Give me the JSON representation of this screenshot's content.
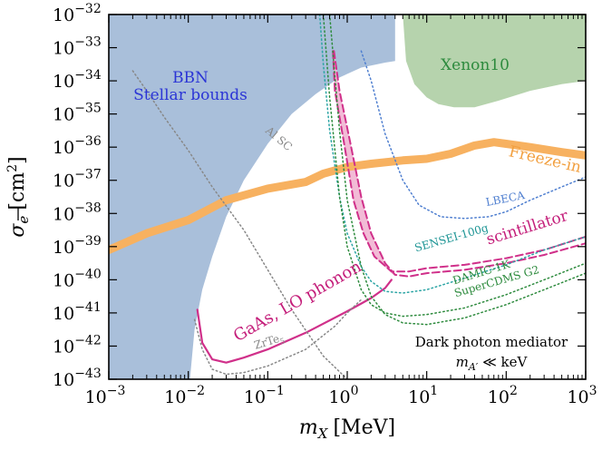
{
  "chart_data": {
    "type": "line",
    "xlabel_var": "m",
    "xlabel_sub": "X",
    "xlabel_unit": "[MeV]",
    "ylabel_var": "σ",
    "ylabel_sub": "e",
    "ylabel_unit_l": "[cm",
    "ylabel_unit_sup": "2",
    "ylabel_unit_r": "]",
    "x_scale": "log",
    "y_scale": "log",
    "xlim": [
      0.001,
      1000
    ],
    "ylim": [
      1e-43,
      1e-32
    ],
    "grid": false,
    "x_ticks": [
      {
        "value": 0.001,
        "base": "10",
        "exp": "−3"
      },
      {
        "value": 0.01,
        "base": "10",
        "exp": "−2"
      },
      {
        "value": 0.1,
        "base": "10",
        "exp": "−1"
      },
      {
        "value": 1,
        "base": "10",
        "exp": "0"
      },
      {
        "value": 10,
        "base": "10",
        "exp": "1"
      },
      {
        "value": 100,
        "base": "10",
        "exp": "2"
      },
      {
        "value": 1000,
        "base": "10",
        "exp": "3"
      }
    ],
    "y_ticks": [
      {
        "value": 1e-32,
        "base": "10",
        "exp": "−32"
      },
      {
        "value": 1e-33,
        "base": "10",
        "exp": "−33"
      },
      {
        "value": 1e-34,
        "base": "10",
        "exp": "−34"
      },
      {
        "value": 1e-35,
        "base": "10",
        "exp": "−35"
      },
      {
        "value": 1e-36,
        "base": "10",
        "exp": "−36"
      },
      {
        "value": 1e-37,
        "base": "10",
        "exp": "−37"
      },
      {
        "value": 1e-38,
        "base": "10",
        "exp": "−38"
      },
      {
        "value": 1e-39,
        "base": "10",
        "exp": "−39"
      },
      {
        "value": 1e-40,
        "base": "10",
        "exp": "−40"
      },
      {
        "value": 1e-41,
        "base": "10",
        "exp": "−41"
      },
      {
        "value": 1e-42,
        "base": "10",
        "exp": "−42"
      },
      {
        "value": 1e-43,
        "base": "10",
        "exp": "−43"
      }
    ],
    "regions": [
      {
        "name": "BBN Stellar bounds",
        "color": "#a9bfda",
        "x": [
          0.001,
          0.0105,
          0.012,
          0.015,
          0.02,
          0.03,
          0.05,
          0.1,
          0.2,
          0.4,
          0.8,
          1.5,
          3,
          4,
          4,
          0.001
        ],
        "y": [
          -43,
          -43,
          -41.5,
          -40.3,
          -39.3,
          -38.1,
          -37.0,
          -35.9,
          -35.0,
          -34.4,
          -33.9,
          -33.6,
          -33.45,
          -33.4,
          -32,
          -32
        ]
      },
      {
        "name": "Xenon10",
        "color": "#b6d3ad",
        "x": [
          5,
          5.5,
          7,
          10,
          14,
          22,
          40,
          80,
          200,
          500,
          1000,
          1000,
          5
        ],
        "y": [
          -32,
          -33.4,
          -34.1,
          -34.5,
          -34.7,
          -34.8,
          -34.8,
          -34.6,
          -34.3,
          -34.1,
          -34.0,
          -32,
          -32
        ]
      },
      {
        "name": "scintillator",
        "color": "#f2bbd6",
        "x": [
          0.68,
          0.8,
          1.1,
          1.5,
          2,
          3,
          4,
          3.6,
          2.2,
          1.6,
          1.2,
          0.9,
          0.7,
          0.66
        ],
        "y": [
          -33.1,
          -34.3,
          -35.9,
          -37.5,
          -38.6,
          -39.5,
          -39.9,
          -39.8,
          -39.3,
          -38.6,
          -37.6,
          -35.8,
          -34.3,
          -33.1
        ]
      }
    ],
    "series": [
      {
        "name": "Freeze-in",
        "color": "#f7b160",
        "width": 9,
        "dash": "",
        "x": [
          0.001,
          0.003,
          0.01,
          0.03,
          0.1,
          0.3,
          0.5,
          1,
          2,
          5,
          10,
          20,
          40,
          70,
          100,
          200,
          500,
          1000
        ],
        "y": [
          -39.1,
          -38.6,
          -38.2,
          -37.6,
          -37.25,
          -37.05,
          -36.8,
          -36.6,
          -36.5,
          -36.4,
          -36.35,
          -36.2,
          -35.95,
          -35.85,
          -35.9,
          -36.0,
          -36.15,
          -36.25
        ]
      },
      {
        "name": "GaAs, LO phonon",
        "color": "#d0308a",
        "width": 2.2,
        "dash": "",
        "x": [
          0.013,
          0.015,
          0.02,
          0.03,
          0.05,
          0.1,
          0.3,
          1,
          2,
          3,
          3.6
        ],
        "y": [
          -40.9,
          -41.9,
          -42.4,
          -42.5,
          -42.35,
          -42.1,
          -41.6,
          -40.95,
          -40.55,
          -40.25,
          -40.0
        ]
      },
      {
        "name": "scintillator",
        "color": "#d0308a",
        "width": 2,
        "dash": "8 4",
        "x": [
          0.68,
          0.8,
          1.1,
          1.5,
          2,
          3,
          4,
          6,
          10,
          30,
          100,
          300,
          1000
        ],
        "y": [
          -33.1,
          -34.3,
          -35.9,
          -37.5,
          -38.6,
          -39.5,
          -39.85,
          -39.9,
          -39.8,
          -39.7,
          -39.5,
          -39.25,
          -38.9
        ]
      },
      {
        "name": "scintillator",
        "color": "#d0308a",
        "width": 2,
        "dash": "8 4",
        "x": [
          0.66,
          0.7,
          0.9,
          1.2,
          1.6,
          2.2,
          3.6,
          6,
          10,
          30,
          100,
          300,
          1000
        ],
        "y": [
          -33.1,
          -34.3,
          -35.8,
          -37.6,
          -38.6,
          -39.3,
          -39.75,
          -39.75,
          -39.65,
          -39.55,
          -39.35,
          -39.1,
          -38.7
        ]
      },
      {
        "name": "Al SC",
        "color": "#888888",
        "width": 1.5,
        "dash": "1.5 3",
        "x": [
          0.002,
          0.003,
          0.005,
          0.01,
          0.02,
          0.05,
          0.1,
          0.2,
          0.5,
          1
        ],
        "y": [
          -33.7,
          -34.3,
          -35.1,
          -36.1,
          -37.2,
          -38.5,
          -39.7,
          -40.9,
          -42.3,
          -43.0
        ]
      },
      {
        "name": "ZrTe5",
        "color": "#888888",
        "width": 1.5,
        "dash": "1.5 3",
        "x": [
          0.012,
          0.015,
          0.02,
          0.03,
          0.05,
          0.1,
          0.3,
          0.7,
          1,
          1.5
        ],
        "y": [
          -41.2,
          -42.1,
          -42.7,
          -42.85,
          -42.8,
          -42.6,
          -42.1,
          -41.4,
          -41.0,
          -40.6
        ]
      },
      {
        "name": "LBECA",
        "color": "#4f7fd0",
        "width": 1.5,
        "dash": "1.5 3",
        "x": [
          1.5,
          2,
          3,
          5,
          8,
          15,
          30,
          60,
          100,
          200,
          500,
          1000
        ],
        "y": [
          -33.1,
          -34.0,
          -35.6,
          -37.0,
          -37.75,
          -38.1,
          -38.15,
          -38.1,
          -37.95,
          -37.6,
          -37.2,
          -36.9
        ]
      },
      {
        "name": "SENSEI-100g",
        "color": "#2ca5a5",
        "width": 1.5,
        "dash": "1.5 3",
        "x": [
          0.45,
          0.5,
          0.6,
          0.8,
          1.0,
          1.5,
          2,
          3,
          5,
          10,
          30,
          100,
          300,
          1000
        ],
        "y": [
          -32.0,
          -33.5,
          -35.5,
          -37.5,
          -38.6,
          -39.6,
          -40.05,
          -40.35,
          -40.4,
          -40.3,
          -39.95,
          -39.55,
          -39.1,
          -38.7
        ]
      },
      {
        "name": "DAMIC-1K",
        "color": "#2e8b3e",
        "width": 1.5,
        "dash": "1.5 3",
        "x": [
          0.5,
          0.6,
          0.8,
          1.0,
          1.5,
          2,
          3,
          5,
          10,
          30,
          100,
          300,
          1000
        ],
        "y": [
          -32.0,
          -34.5,
          -37.5,
          -39.0,
          -40.3,
          -40.75,
          -41.0,
          -41.1,
          -41.05,
          -40.85,
          -40.45,
          -40.0,
          -39.5
        ]
      },
      {
        "name": "SuperCDMS G2",
        "color": "#2e8b3e",
        "width": 1.5,
        "dash": "1.5 3",
        "x": [
          0.6,
          0.8,
          1.0,
          1.5,
          2,
          3,
          5,
          10,
          30,
          100,
          300,
          1000
        ],
        "y": [
          -32.0,
          -35.5,
          -37.6,
          -39.6,
          -40.5,
          -41.05,
          -41.3,
          -41.35,
          -41.15,
          -40.75,
          -40.3,
          -39.8
        ]
      }
    ],
    "annotations": [
      {
        "key": "bbn",
        "line1": "BBN",
        "line2": "Stellar bounds",
        "color": "#2b35d6"
      },
      {
        "key": "xenon",
        "text": "Xenon10",
        "color": "#2e8b3e"
      },
      {
        "key": "alsc",
        "text": "Al SC",
        "color": "#888888"
      },
      {
        "key": "freeze",
        "text": "Freeze-in",
        "color": "#f2a040"
      },
      {
        "key": "lbeca",
        "text": "LBECA",
        "color": "#4f7fd0"
      },
      {
        "key": "sensei",
        "text": "SENSEI-100g",
        "color": "#1e9595"
      },
      {
        "key": "scint",
        "text": "scintillator",
        "color": "#c41e7a"
      },
      {
        "key": "damic",
        "text": "DAMIC-1K",
        "color": "#2e8b3e"
      },
      {
        "key": "supercdms",
        "text": "SuperCDMS G2",
        "color": "#2e8b3e"
      },
      {
        "key": "gaas",
        "text": "GaAs, LO phonon",
        "color": "#c41e7a"
      },
      {
        "key": "zrte",
        "text": "ZrTe",
        "sub": "5",
        "color": "#888888"
      }
    ],
    "mediator_box": {
      "line1": "Dark photon mediator",
      "line2_var": "m",
      "line2_sub": "A′",
      "line2_rest": " ≪ keV"
    }
  }
}
